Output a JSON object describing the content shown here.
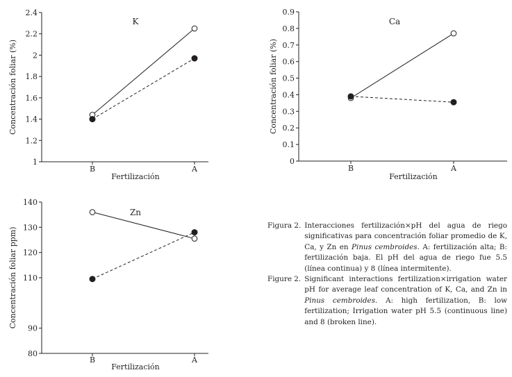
{
  "chart_data": [
    {
      "type": "line",
      "title": "K",
      "xlabel": "Fertilización",
      "ylabel": "Concentración foliar (%)",
      "categories": [
        "B",
        "A"
      ],
      "ylim": [
        1,
        2.4
      ],
      "yticks": [
        "1",
        "1.2",
        "1.4",
        "1.6",
        "1.8",
        "2",
        "2.2",
        "2.4"
      ],
      "series": [
        {
          "style": "solid",
          "marker": "open-circle",
          "values": [
            1.44,
            2.25
          ]
        },
        {
          "style": "dashed",
          "marker": "filled-circle",
          "values": [
            1.4,
            1.97
          ]
        }
      ],
      "grid": false
    },
    {
      "type": "line",
      "title": "Ca",
      "xlabel": "Fertilización",
      "ylabel": "Concentración foliar (%)",
      "categories": [
        "B",
        "A"
      ],
      "ylim": [
        0,
        0.9
      ],
      "yticks": [
        "0",
        "0.1",
        "0.2",
        "0.3",
        "0.4",
        "0.5",
        "0.6",
        "0.7",
        "0.8",
        "0.9"
      ],
      "series": [
        {
          "style": "solid",
          "marker": "open-circle",
          "values": [
            0.38,
            0.77
          ]
        },
        {
          "style": "dashed",
          "marker": "filled-circle",
          "values": [
            0.39,
            0.355
          ]
        }
      ],
      "grid": false
    },
    {
      "type": "line",
      "title": "Zn",
      "xlabel": "Fertilización",
      "ylabel": "Concentración foliar ppm)",
      "categories": [
        "B",
        "A"
      ],
      "ylim": [
        80,
        140
      ],
      "yticks": [
        "80",
        "90",
        "110",
        "120",
        "130",
        "140"
      ],
      "series": [
        {
          "style": "solid",
          "marker": "open-circle",
          "values": [
            136,
            125.5
          ]
        },
        {
          "style": "dashed",
          "marker": "filled-circle",
          "values": [
            109.5,
            128
          ]
        }
      ],
      "grid": false
    }
  ],
  "caption": {
    "es": {
      "label": "Figura 2.",
      "text_before": "Interacciones fertilización×pH del agua de riego significativas para concentración foliar promedio de K, Ca, y Zn en ",
      "species": "Pinus cembroides",
      "text_after": ". A: fertilización alta; B: fertilización baja. El pH del agua de riego fue 5.5 (línea continua) y 8 (línea intermitente)."
    },
    "en": {
      "label": "Figure 2.",
      "text_before": "Significant interactions fertilization×irrigation water pH for average leaf concentration of K, Ca, and Zn in ",
      "species": "Pinus cembroides",
      "text_after": ". A: high fertilization, B: low fertilization; Irrigation water pH 5.5 (continuous line) and 8 (broken line)."
    }
  }
}
